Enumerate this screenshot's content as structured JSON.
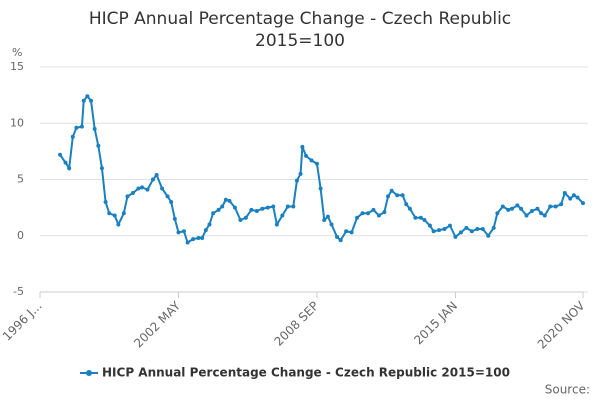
{
  "chart_data": {
    "type": "line",
    "title": "HICP Annual Percentage Change - Czech Republic 2015=100",
    "y_label": "%",
    "source_label": "Source:",
    "legend": "bottom",
    "grid": true,
    "ylim": [
      -5,
      15
    ],
    "yticks": [
      -5,
      0,
      5,
      10,
      15
    ],
    "xlim": [
      "1996 JAN",
      "2020 NOV"
    ],
    "xticks": [
      {
        "value": "1996 JAN",
        "label": "1996 J..."
      },
      "2002 MAY",
      "2008 SEP",
      "2015 JAN",
      "2020 NOV"
    ],
    "x": [
      "1996 DEC",
      "1997 MAR",
      "1997 MAY",
      "1997 JUL",
      "1997 SEP",
      "1997 DEC",
      "1998 JAN",
      "1998 MAR",
      "1998 MAY",
      "1998 JUL",
      "1998 SEP",
      "1998 NOV",
      "1999 JAN",
      "1999 MAR",
      "1999 JUN",
      "1999 AUG",
      "1999 NOV",
      "2000 JAN",
      "2000 APR",
      "2000 JUL",
      "2000 SEP",
      "2000 DEC",
      "2001 MAR",
      "2001 MAY",
      "2001 AUG",
      "2001 NOV",
      "2002 JAN",
      "2002 MAR",
      "2002 MAY",
      "2002 AUG",
      "2002 OCT",
      "2003 JAN",
      "2003 APR",
      "2003 JUN",
      "2003 AUG",
      "2003 OCT",
      "2003 DEC",
      "2004 MAR",
      "2004 MAY",
      "2004 JUL",
      "2004 SEP",
      "2004 DEC",
      "2005 MAR",
      "2005 JUN",
      "2005 SEP",
      "2005 DEC",
      "2006 MAR",
      "2006 JUN",
      "2006 SEP",
      "2006 NOV",
      "2007 FEB",
      "2007 MAY",
      "2007 AUG",
      "2007 OCT",
      "2007 DEC",
      "2008 JAN",
      "2008 MAR",
      "2008 JUN",
      "2008 SEP",
      "2008 NOV",
      "2009 JAN",
      "2009 MAR",
      "2009 MAY",
      "2009 AUG",
      "2009 OCT",
      "2010 JAN",
      "2010 APR",
      "2010 JUL",
      "2010 OCT",
      "2011 JAN",
      "2011 APR",
      "2011 JUL",
      "2011 OCT",
      "2011 DEC",
      "2012 FEB",
      "2012 MAY",
      "2012 AUG",
      "2012 OCT",
      "2012 DEC",
      "2013 MAR",
      "2013 JUN",
      "2013 AUG",
      "2013 NOV",
      "2014 JAN",
      "2014 APR",
      "2014 JUL",
      "2014 OCT",
      "2015 JAN",
      "2015 APR",
      "2015 JUL",
      "2015 OCT",
      "2016 JAN",
      "2016 APR",
      "2016 JUL",
      "2016 OCT",
      "2016 DEC",
      "2017 MAR",
      "2017 JUN",
      "2017 AUG",
      "2017 NOV",
      "2018 JAN",
      "2018 APR",
      "2018 JUL",
      "2018 OCT",
      "2018 DEC",
      "2019 FEB",
      "2019 MAY",
      "2019 AUG",
      "2019 NOV",
      "2020 JAN",
      "2020 APR",
      "2020 JUN",
      "2020 AUG",
      "2020 NOV"
    ],
    "series": [
      {
        "name": "HICP Annual Percentage Change - Czech Republic 2015=100",
        "color": "#1a80bf",
        "values": [
          7.2,
          6.5,
          6.0,
          8.8,
          9.6,
          9.7,
          12.0,
          12.4,
          12.0,
          9.5,
          8.0,
          6.0,
          3.0,
          2.0,
          1.8,
          1.0,
          2.0,
          3.5,
          3.8,
          4.2,
          4.3,
          4.1,
          5.0,
          5.4,
          4.2,
          3.5,
          3.0,
          1.5,
          0.3,
          0.4,
          -0.6,
          -0.3,
          -0.2,
          -0.2,
          0.5,
          1.0,
          2.0,
          2.3,
          2.6,
          3.2,
          3.1,
          2.5,
          1.4,
          1.6,
          2.3,
          2.2,
          2.4,
          2.5,
          2.6,
          1.0,
          1.8,
          2.6,
          2.6,
          4.9,
          5.5,
          7.9,
          7.1,
          6.7,
          6.4,
          4.2,
          1.4,
          1.7,
          1.0,
          -0.1,
          -0.4,
          0.4,
          0.3,
          1.6,
          2.0,
          2.0,
          2.3,
          1.8,
          2.1,
          3.5,
          4.0,
          3.6,
          3.6,
          2.8,
          2.4,
          1.6,
          1.6,
          1.4,
          0.9,
          0.4,
          0.5,
          0.6,
          0.9,
          -0.1,
          0.3,
          0.7,
          0.4,
          0.6,
          0.6,
          0.0,
          0.7,
          2.0,
          2.6,
          2.3,
          2.4,
          2.7,
          2.4,
          1.8,
          2.2,
          2.4,
          2.0,
          1.8,
          2.6,
          2.6,
          2.8,
          3.8,
          3.3,
          3.6,
          3.4,
          2.9
        ]
      }
    ]
  }
}
